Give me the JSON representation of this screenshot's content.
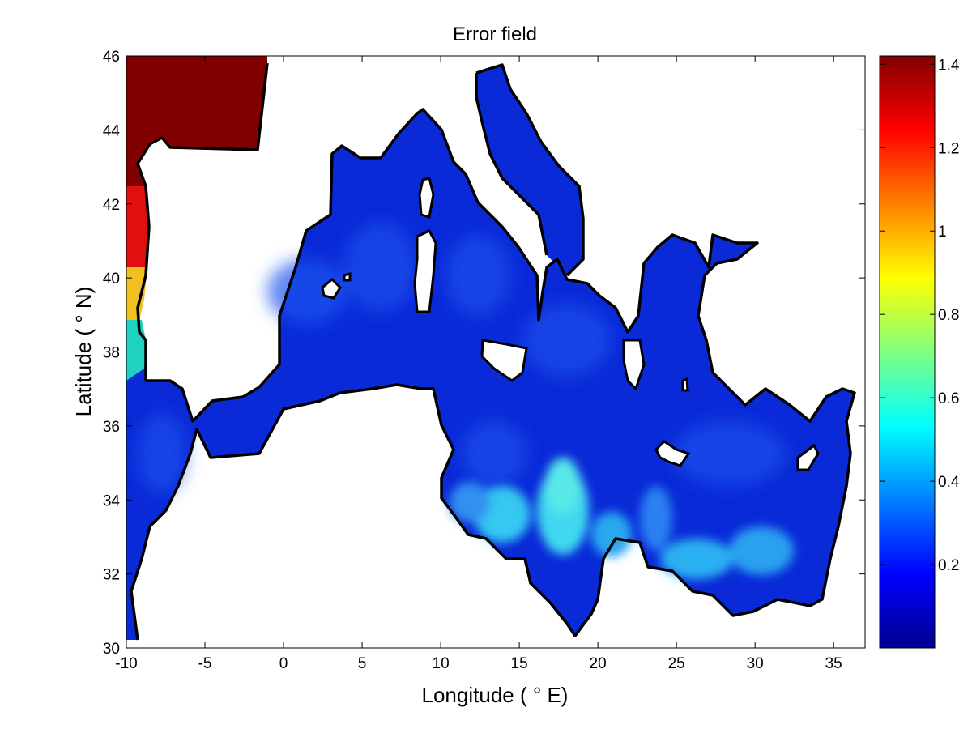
{
  "chart_data": {
    "type": "heatmap",
    "title": "Error field",
    "xlabel": "Longitude ( ° E)",
    "ylabel": "Latitude ( ° N)",
    "xlim": [
      -10,
      37
    ],
    "ylim": [
      30,
      46
    ],
    "xticks": [
      -10,
      -5,
      0,
      5,
      10,
      15,
      20,
      25,
      30,
      35
    ],
    "xtick_labels": [
      "-10",
      "-5",
      "0",
      "5",
      "10",
      "15",
      "20",
      "25",
      "30",
      "35"
    ],
    "yticks": [
      30,
      32,
      34,
      36,
      38,
      40,
      42,
      44,
      46
    ],
    "ytick_labels": [
      "30",
      "32",
      "34",
      "36",
      "38",
      "40",
      "42",
      "44",
      "46"
    ],
    "colorbar": {
      "colormap": "jet",
      "range": [
        0,
        1.42
      ],
      "ticks": [
        0.2,
        0.4,
        0.6,
        0.8,
        1.0,
        1.2,
        1.4
      ],
      "tick_labels": [
        "0.2",
        "0.4",
        "0.6",
        "0.8",
        "1",
        "1.2",
        "1.4"
      ]
    },
    "grid": false,
    "colors": {
      "coastline": "#000000",
      "land": "#ffffff",
      "background": "#ffffff"
    },
    "field_summary": {
      "mediterranean_typical_error": 0.12,
      "libyan_coast_max_error": 0.45,
      "bay_of_biscay_error": 1.42,
      "atlantic_iberian_coast_range": [
        0.3,
        1.42
      ]
    }
  }
}
